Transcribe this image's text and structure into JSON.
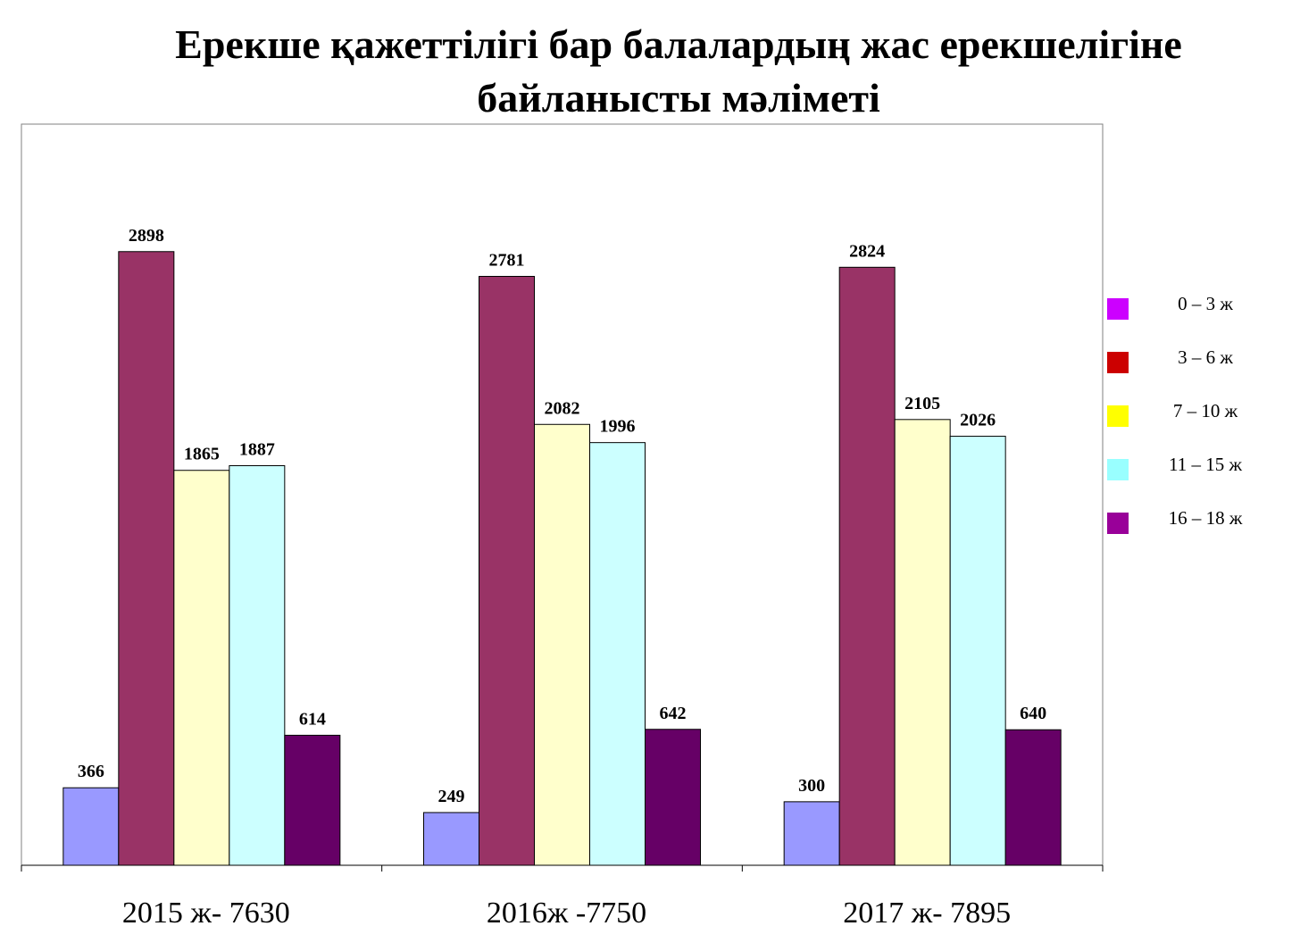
{
  "chart_data": {
    "type": "bar",
    "title": [
      "Ерекше қажеттілігі бар балалардың жас ерекшелігіне",
      "байланысты мәліметі"
    ],
    "categories": [
      "2015 ж- 7630",
      "2016ж -7750",
      "2017 ж- 7895"
    ],
    "series": [
      {
        "values": [
          366,
          249,
          300
        ],
        "color": "#9999ff"
      },
      {
        "values": [
          2898,
          2781,
          2824
        ],
        "color": "#993366"
      },
      {
        "values": [
          1865,
          2082,
          2105
        ],
        "color": "#ffffcc"
      },
      {
        "values": [
          1887,
          1996,
          2026
        ],
        "color": "#ccffff"
      },
      {
        "values": [
          614,
          642,
          640
        ],
        "color": "#660066"
      }
    ],
    "legend": {
      "position": "right",
      "items": [
        {
          "label": "0 – 3 ж",
          "color": "#cc00ff"
        },
        {
          "label": "3 – 6 ж",
          "color": "#cc0000"
        },
        {
          "label": "7 – 10 ж",
          "color": "#ffff00"
        },
        {
          "label": "11 – 15 ж",
          "color": "#99ffff"
        },
        {
          "label": "16 – 18 ж",
          "color": "#990099"
        }
      ]
    },
    "ylim": [
      0,
      3500
    ],
    "grid": false,
    "data_labels": true
  }
}
